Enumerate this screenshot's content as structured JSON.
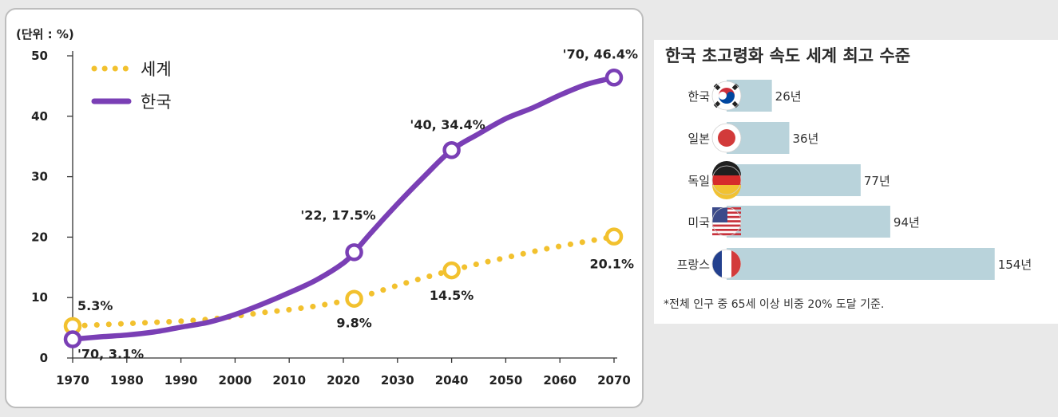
{
  "line_chart": {
    "unit_label": "(단위 : %)",
    "legend": {
      "world": "세계",
      "korea": "한국"
    },
    "annotations": {
      "world_1970": "5.3%",
      "world_2022": "9.8%",
      "world_2040": "14.5%",
      "world_2070": "20.1%",
      "korea_1970": "'70, 3.1%",
      "korea_2022": "'22, 17.5%",
      "korea_2040": "'40, 34.4%",
      "korea_2070": "'70, 46.4%"
    }
  },
  "bar_chart": {
    "title": "한국 초고령화 속도 세계 최고 수준",
    "note": "*전체 인구 중 65세 이상 비중 20% 도달 기준."
  },
  "colors": {
    "world": "#f2c12e",
    "korea": "#7a3fb5",
    "bar": "#b9d3db"
  },
  "chart_data": [
    {
      "type": "line",
      "title": "",
      "xlabel": "",
      "ylabel": "(단위 : %)",
      "xlim": [
        1970,
        2070
      ],
      "ylim": [
        0,
        50
      ],
      "x_ticks": [
        1970,
        1980,
        1990,
        2000,
        2010,
        2020,
        2030,
        2040,
        2050,
        2060,
        2070
      ],
      "y_ticks": [
        0,
        10,
        20,
        30,
        40,
        50
      ],
      "series": [
        {
          "name": "세계",
          "style": "dotted",
          "x": [
            1970,
            1975,
            1980,
            1985,
            1990,
            1995,
            2000,
            2005,
            2010,
            2015,
            2020,
            2022,
            2025,
            2030,
            2035,
            2040,
            2045,
            2050,
            2055,
            2060,
            2065,
            2070
          ],
          "values": [
            5.3,
            5.5,
            5.7,
            5.9,
            6.1,
            6.4,
            6.9,
            7.5,
            8.0,
            8.6,
            9.4,
            9.8,
            10.6,
            12.0,
            13.3,
            14.5,
            15.6,
            16.6,
            17.6,
            18.5,
            19.3,
            20.1
          ],
          "markers": [
            [
              1970,
              5.3
            ],
            [
              2022,
              9.8
            ],
            [
              2040,
              14.5
            ],
            [
              2070,
              20.1
            ]
          ]
        },
        {
          "name": "한국",
          "style": "solid",
          "x": [
            1970,
            1975,
            1980,
            1985,
            1990,
            1995,
            2000,
            2005,
            2010,
            2015,
            2020,
            2022,
            2025,
            2030,
            2035,
            2040,
            2045,
            2050,
            2055,
            2060,
            2065,
            2070
          ],
          "values": [
            3.1,
            3.5,
            3.8,
            4.3,
            5.1,
            5.9,
            7.2,
            8.9,
            10.8,
            12.9,
            15.7,
            17.5,
            20.6,
            25.5,
            30.1,
            34.4,
            37.1,
            39.6,
            41.4,
            43.5,
            45.3,
            46.4
          ],
          "markers": [
            [
              1970,
              3.1
            ],
            [
              2022,
              17.5
            ],
            [
              2040,
              34.4
            ],
            [
              2070,
              46.4
            ]
          ]
        }
      ]
    },
    {
      "type": "bar",
      "orientation": "horizontal",
      "title": "한국 초고령화 속도 세계 최고 수준",
      "categories": [
        "한국",
        "일본",
        "독일",
        "미국",
        "프랑스"
      ],
      "flags": [
        "korea-flag",
        "japan-flag",
        "germany-flag",
        "usa-flag",
        "france-flag"
      ],
      "values": [
        26,
        36,
        77,
        94,
        154
      ],
      "value_labels": [
        "26년",
        "36년",
        "77년",
        "94년",
        "154년"
      ],
      "unit": "년"
    }
  ]
}
